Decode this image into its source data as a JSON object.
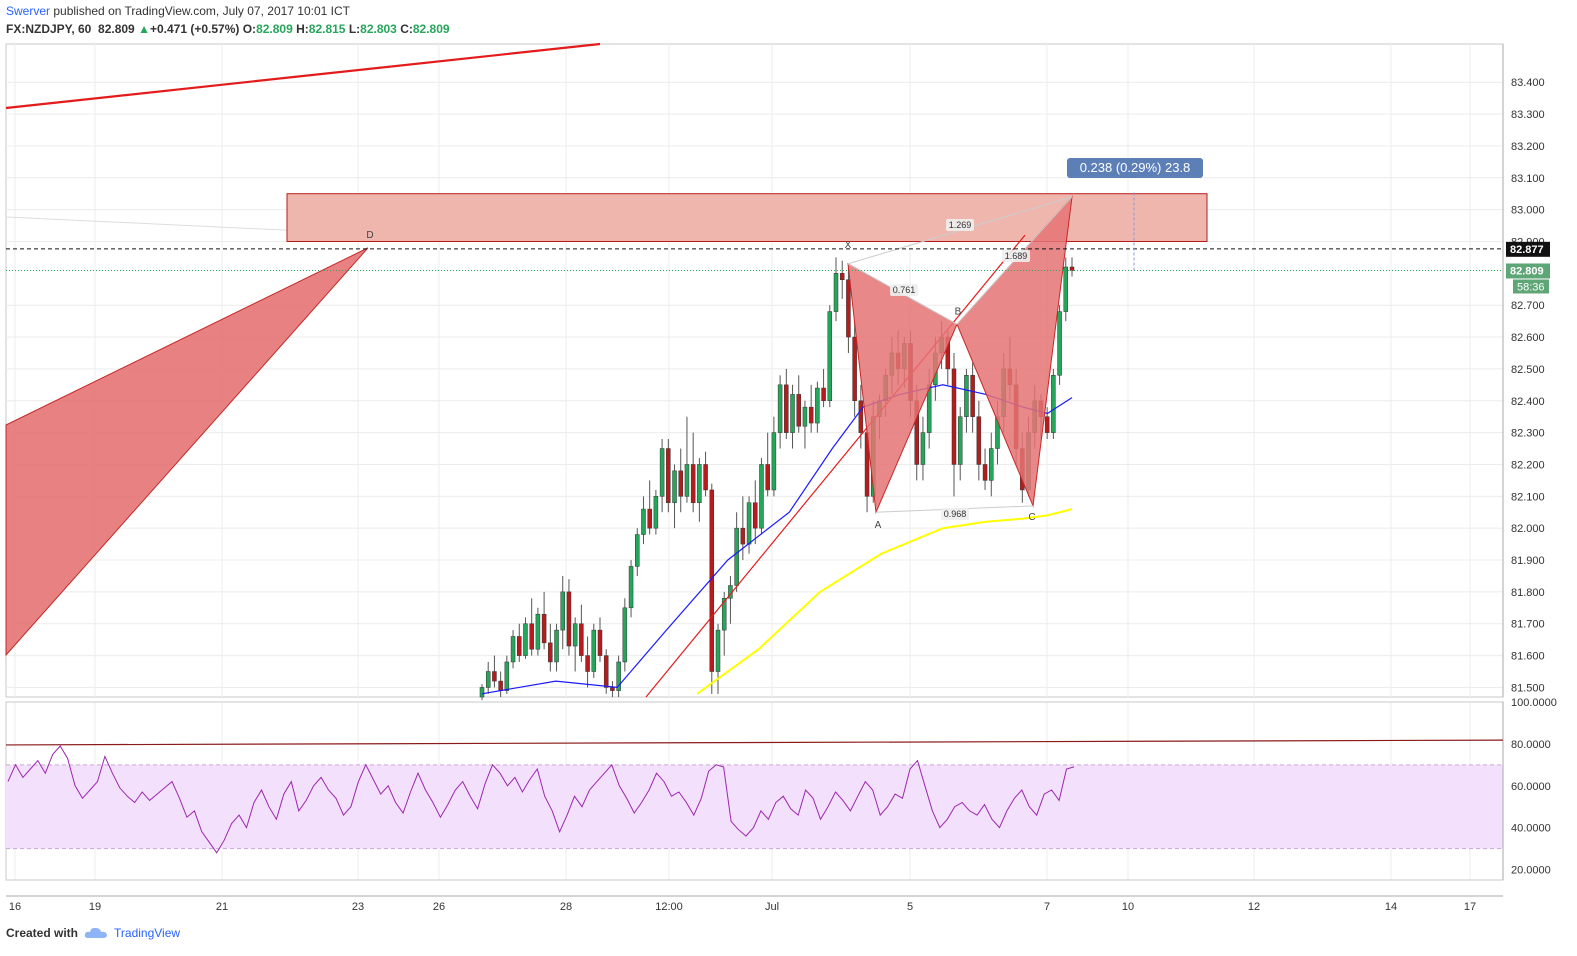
{
  "header": {
    "author": "Swerver",
    "published_text": "published on TradingView.com, July 07, 2017 10:01 ICT",
    "symbol": "FX:NZDJPY, 60",
    "last": "82.809",
    "change": "+0.471 (+0.57%)",
    "o_label": "O:",
    "o_value": "82.809",
    "h_label": "H:",
    "h_value": "82.815",
    "l_label": "L:",
    "l_value": "82.803",
    "c_label": "C:",
    "c_value": "82.809"
  },
  "footer": {
    "created_with": "Created with",
    "brand": "TradingView"
  },
  "colors": {
    "up": "#26a65b",
    "down": "#b71c1c",
    "pattern_fill": "#e57373",
    "zone_fill": "#efb6ae",
    "zone_stroke": "#b71c1c",
    "ma_fast": "#1a1aff",
    "ma_slow": "#ffff00",
    "rsi_line": "#9c27b0",
    "rsi_band": "#f3e0fc",
    "label_box": "#5c7fb8"
  },
  "chart_data": {
    "type": "candlestick",
    "price_axis": {
      "range": [
        81.47,
        83.52
      ],
      "ticks": [
        "83.400",
        "83.300",
        "83.200",
        "83.100",
        "83.000",
        "82.900",
        "82.700",
        "82.600",
        "82.500",
        "82.400",
        "82.300",
        "82.200",
        "82.100",
        "82.000",
        "81.900",
        "81.800",
        "81.700",
        "81.600",
        "81.500"
      ]
    },
    "time_axis": {
      "ticks": [
        {
          "label": "16",
          "i": 0
        },
        {
          "label": "19",
          "i": 1
        },
        {
          "label": "21",
          "i": 2
        },
        {
          "label": "23",
          "i": 3
        },
        {
          "label": "26",
          "i": 4
        },
        {
          "label": "28",
          "i": 5
        },
        {
          "label": "12:00",
          "i": 6
        },
        {
          "label": "Jul",
          "i": 7
        },
        {
          "label": "5",
          "i": 8
        },
        {
          "label": "7",
          "i": 9
        },
        {
          "label": "10",
          "i": 10
        },
        {
          "label": "12",
          "i": 11
        },
        {
          "label": "14",
          "i": 12
        },
        {
          "label": "17",
          "i": 13
        }
      ]
    },
    "price_labels": {
      "current": "82.809",
      "countdown": "58:36",
      "line": "82.877"
    },
    "measure_label": "0.238 (0.29%) 23.8",
    "zone": {
      "top": 83.05,
      "bottom": 82.9
    },
    "dashed_level": 82.877,
    "current_level": 82.809,
    "harmonic": {
      "points": [
        {
          "label": "X",
          "price": 82.83
        },
        {
          "label": "A",
          "price": 82.05
        },
        {
          "label": "B",
          "price": 82.64
        },
        {
          "label": "C",
          "price": 82.07
        },
        {
          "label": "D",
          "price": 83.04
        }
      ],
      "ratios": [
        "1.269",
        "0.761",
        "1.689",
        "0.968"
      ]
    },
    "left_pattern": {
      "label": "D",
      "price": 82.88
    },
    "candles": [
      [
        81.47,
        81.51,
        81.46,
        81.5
      ],
      [
        81.5,
        81.58,
        81.48,
        81.55
      ],
      [
        81.55,
        81.6,
        81.5,
        81.52
      ],
      [
        81.52,
        81.55,
        81.47,
        81.49
      ],
      [
        81.49,
        81.6,
        81.48,
        81.58
      ],
      [
        81.58,
        81.68,
        81.56,
        81.66
      ],
      [
        81.66,
        81.7,
        81.58,
        81.6
      ],
      [
        81.6,
        81.72,
        81.59,
        81.7
      ],
      [
        81.7,
        81.78,
        81.6,
        81.62
      ],
      [
        81.62,
        81.75,
        81.6,
        81.73
      ],
      [
        81.73,
        81.8,
        81.62,
        81.64
      ],
      [
        81.64,
        81.7,
        81.55,
        81.58
      ],
      [
        81.58,
        81.7,
        81.55,
        81.68
      ],
      [
        81.68,
        81.85,
        81.62,
        81.8
      ],
      [
        81.8,
        81.84,
        81.6,
        81.63
      ],
      [
        81.63,
        81.72,
        81.55,
        81.7
      ],
      [
        81.7,
        81.76,
        81.58,
        81.6
      ],
      [
        81.6,
        81.66,
        81.5,
        81.55
      ],
      [
        81.55,
        81.7,
        81.53,
        81.68
      ],
      [
        81.68,
        81.72,
        81.58,
        81.6
      ],
      [
        81.6,
        81.62,
        81.48,
        81.5
      ],
      [
        81.5,
        81.52,
        81.47,
        81.49
      ],
      [
        81.49,
        81.6,
        81.47,
        81.58
      ],
      [
        81.58,
        81.78,
        81.55,
        81.75
      ],
      [
        81.75,
        81.9,
        81.72,
        81.88
      ],
      [
        81.88,
        82.0,
        81.85,
        81.98
      ],
      [
        81.98,
        82.1,
        81.95,
        82.06
      ],
      [
        82.06,
        82.15,
        81.98,
        82.0
      ],
      [
        82.0,
        82.12,
        81.98,
        82.1
      ],
      [
        82.1,
        82.28,
        82.05,
        82.25
      ],
      [
        82.25,
        82.28,
        82.05,
        82.08
      ],
      [
        82.08,
        82.2,
        82.0,
        82.18
      ],
      [
        82.18,
        82.25,
        82.05,
        82.1
      ],
      [
        82.1,
        82.35,
        82.08,
        82.2
      ],
      [
        82.2,
        82.3,
        82.05,
        82.08
      ],
      [
        82.08,
        82.22,
        82.02,
        82.2
      ],
      [
        82.2,
        82.24,
        82.1,
        82.12
      ],
      [
        82.12,
        82.14,
        81.48,
        81.55
      ],
      [
        81.55,
        81.7,
        81.48,
        81.68
      ],
      [
        81.68,
        81.8,
        81.6,
        81.78
      ],
      [
        81.78,
        81.85,
        81.7,
        81.82
      ],
      [
        81.82,
        82.05,
        81.8,
        82.0
      ],
      [
        82.0,
        82.1,
        81.9,
        81.95
      ],
      [
        81.95,
        82.1,
        81.92,
        82.08
      ],
      [
        82.08,
        82.15,
        81.95,
        82.0
      ],
      [
        82.0,
        82.22,
        81.98,
        82.2
      ],
      [
        82.2,
        82.3,
        82.1,
        82.12
      ],
      [
        82.12,
        82.35,
        82.1,
        82.3
      ],
      [
        82.3,
        82.48,
        82.25,
        82.45
      ],
      [
        82.45,
        82.5,
        82.28,
        82.3
      ],
      [
        82.3,
        82.45,
        82.25,
        82.42
      ],
      [
        82.42,
        82.48,
        82.3,
        82.32
      ],
      [
        82.32,
        82.4,
        82.25,
        82.38
      ],
      [
        82.38,
        82.45,
        82.3,
        82.33
      ],
      [
        82.33,
        82.46,
        82.3,
        82.44
      ],
      [
        82.44,
        82.5,
        82.38,
        82.4
      ],
      [
        82.4,
        82.7,
        82.38,
        82.68
      ],
      [
        82.68,
        82.85,
        82.65,
        82.8
      ],
      [
        82.8,
        82.84,
        82.72,
        82.78
      ],
      [
        82.78,
        82.82,
        82.55,
        82.6
      ],
      [
        82.6,
        82.65,
        82.35,
        82.4
      ],
      [
        82.4,
        82.45,
        82.25,
        82.3
      ],
      [
        82.3,
        82.32,
        82.05,
        82.1
      ],
      [
        82.1,
        82.4,
        82.08,
        82.35
      ],
      [
        82.35,
        82.42,
        82.28,
        82.4
      ],
      [
        82.4,
        82.5,
        82.35,
        82.48
      ],
      [
        82.48,
        82.6,
        82.42,
        82.55
      ],
      [
        82.55,
        82.62,
        82.45,
        82.5
      ],
      [
        82.5,
        82.6,
        82.44,
        82.58
      ],
      [
        82.58,
        82.62,
        82.35,
        82.4
      ],
      [
        82.4,
        82.45,
        82.15,
        82.2
      ],
      [
        82.2,
        82.35,
        82.15,
        82.3
      ],
      [
        82.3,
        82.5,
        82.25,
        82.45
      ],
      [
        82.45,
        82.6,
        82.4,
        82.55
      ],
      [
        82.55,
        82.65,
        82.5,
        82.6
      ],
      [
        82.6,
        82.62,
        82.45,
        82.5
      ],
      [
        82.5,
        82.55,
        82.1,
        82.2
      ],
      [
        82.2,
        82.38,
        82.15,
        82.35
      ],
      [
        82.35,
        82.5,
        82.3,
        82.48
      ],
      [
        82.48,
        82.52,
        82.3,
        82.35
      ],
      [
        82.35,
        82.4,
        82.15,
        82.2
      ],
      [
        82.2,
        82.25,
        82.12,
        82.15
      ],
      [
        82.15,
        82.3,
        82.1,
        82.25
      ],
      [
        82.25,
        82.4,
        82.2,
        82.35
      ],
      [
        82.35,
        82.55,
        82.3,
        82.5
      ],
      [
        82.5,
        82.6,
        82.4,
        82.45
      ],
      [
        82.45,
        82.5,
        82.2,
        82.25
      ],
      [
        82.25,
        82.3,
        82.08,
        82.12
      ],
      [
        82.12,
        82.35,
        82.1,
        82.3
      ],
      [
        82.3,
        82.45,
        82.25,
        82.4
      ],
      [
        82.4,
        82.42,
        82.28,
        82.35
      ],
      [
        82.35,
        82.38,
        82.28,
        82.3
      ],
      [
        82.3,
        82.5,
        82.28,
        82.48
      ],
      [
        82.48,
        82.7,
        82.45,
        82.68
      ],
      [
        82.68,
        82.85,
        82.65,
        82.82
      ],
      [
        82.82,
        82.85,
        82.79,
        82.809
      ]
    ],
    "ma_fast_path": [
      [
        0,
        81.48
      ],
      [
        12,
        81.52
      ],
      [
        22,
        81.5
      ],
      [
        30,
        81.68
      ],
      [
        40,
        81.9
      ],
      [
        50,
        82.05
      ],
      [
        57,
        82.25
      ],
      [
        62,
        82.38
      ],
      [
        68,
        82.42
      ],
      [
        75,
        82.45
      ],
      [
        82,
        82.42
      ],
      [
        88,
        82.38
      ],
      [
        92,
        82.36
      ],
      [
        96,
        82.41
      ]
    ],
    "ma_slow_path": [
      [
        35,
        81.48
      ],
      [
        45,
        81.62
      ],
      [
        55,
        81.8
      ],
      [
        65,
        81.92
      ],
      [
        75,
        82.0
      ],
      [
        82,
        82.02
      ],
      [
        88,
        82.03
      ],
      [
        92,
        82.04
      ],
      [
        96,
        82.06
      ]
    ],
    "rsi": {
      "axis_ticks": [
        "100.0000",
        "80.0000",
        "60.0000",
        "40.0000",
        "20.0000"
      ],
      "band": [
        30,
        70
      ],
      "range": [
        15,
        100
      ],
      "values": [
        62,
        70,
        64,
        68,
        72,
        66,
        75,
        79,
        73,
        60,
        54,
        58,
        62,
        74,
        66,
        59,
        55,
        52,
        57,
        53,
        56,
        59,
        62,
        54,
        45,
        48,
        38,
        33,
        28,
        34,
        42,
        46,
        40,
        52,
        58,
        50,
        44,
        56,
        62,
        48,
        53,
        60,
        64,
        58,
        54,
        46,
        50,
        62,
        70,
        63,
        56,
        60,
        52,
        47,
        57,
        66,
        58,
        52,
        45,
        51,
        58,
        62,
        55,
        49,
        61,
        70,
        66,
        60,
        64,
        57,
        63,
        68,
        55,
        48,
        38,
        46,
        55,
        50,
        58,
        62,
        66,
        70,
        60,
        54,
        47,
        52,
        58,
        66,
        62,
        55,
        57,
        52,
        46,
        54,
        67,
        70,
        69,
        43,
        39,
        36,
        40,
        48,
        44,
        52,
        55,
        49,
        46,
        58,
        54,
        44,
        50,
        57,
        53,
        48,
        55,
        62,
        58,
        46,
        50,
        56,
        54,
        68,
        72,
        60,
        48,
        40,
        44,
        50,
        52,
        48,
        46,
        51,
        44,
        40,
        48,
        54,
        58,
        50,
        46,
        56,
        58,
        53,
        68,
        69
      ]
    }
  }
}
